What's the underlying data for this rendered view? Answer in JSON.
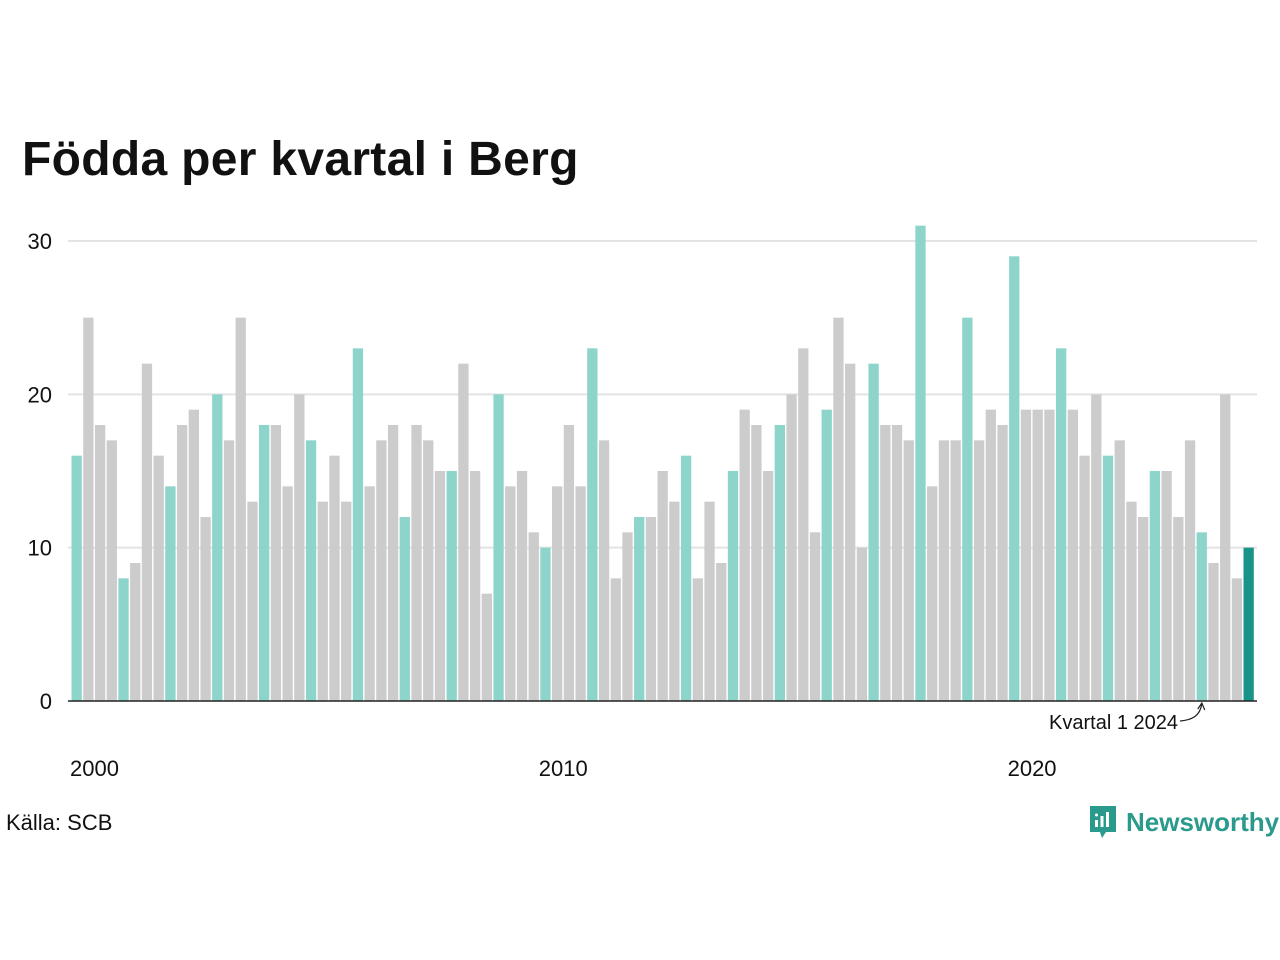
{
  "chart_data": {
    "type": "bar",
    "title": "Födda per kvartal i Berg",
    "x_tick_labels": [
      "2000",
      "2010",
      "2020"
    ],
    "y_ticks": [
      0,
      10,
      20,
      30
    ],
    "ylim": [
      0,
      32
    ],
    "grid": true,
    "annotation": "Kvartal 1 2024",
    "highlight_rule": "first quarter of each year",
    "values": [
      16,
      25,
      18,
      17,
      8,
      9,
      22,
      16,
      14,
      18,
      19,
      12,
      20,
      17,
      25,
      13,
      18,
      18,
      14,
      20,
      17,
      13,
      16,
      13,
      23,
      14,
      17,
      18,
      12,
      18,
      17,
      15,
      15,
      22,
      15,
      7,
      20,
      14,
      15,
      11,
      10,
      14,
      18,
      14,
      23,
      17,
      8,
      11,
      12,
      12,
      15,
      13,
      16,
      8,
      13,
      9,
      15,
      19,
      18,
      15,
      18,
      20,
      23,
      11,
      19,
      25,
      22,
      10,
      22,
      18,
      18,
      17,
      31,
      14,
      17,
      17,
      25,
      17,
      19,
      18,
      29,
      19,
      19,
      19,
      23,
      19,
      16,
      20,
      16,
      17,
      13,
      12,
      15,
      15,
      12,
      17,
      11,
      9,
      20,
      8,
      10
    ],
    "colors": {
      "q1": "#8dd4cb",
      "other": "#cccccc",
      "latest": "#1a9488"
    }
  },
  "source": "Källa: SCB",
  "brand": "Newsworthy"
}
